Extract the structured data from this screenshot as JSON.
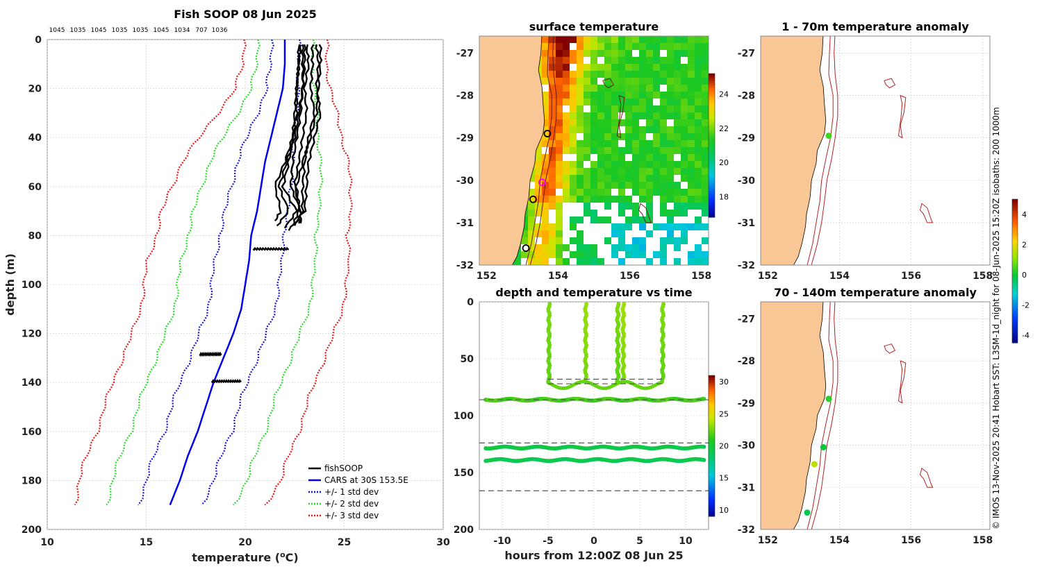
{
  "chart_data": [
    {
      "id": "profile",
      "type": "line",
      "title": "Fish SOOP 08 Jun 2025",
      "top_labels": [
        "1045",
        "1035",
        "1045",
        "1035",
        "1035",
        "1045",
        "1034",
        "707",
        "1036"
      ],
      "xlabel": "temperature (°C)",
      "ylabel": "depth (m)",
      "xlim": [
        10,
        30
      ],
      "ylim": [
        200,
        0
      ],
      "xticks": [
        10,
        15,
        20,
        25,
        30
      ],
      "yticks": [
        0,
        20,
        40,
        60,
        80,
        100,
        120,
        140,
        160,
        180,
        200
      ],
      "depths": [
        0,
        10,
        20,
        30,
        40,
        50,
        60,
        70,
        80,
        90,
        100,
        110,
        120,
        130,
        140,
        150,
        160,
        170,
        180,
        190
      ],
      "cars_mean": [
        22.0,
        22.0,
        21.9,
        21.6,
        21.3,
        21.0,
        20.8,
        20.6,
        20.3,
        20.2,
        20.0,
        19.8,
        19.4,
        18.9,
        18.4,
        18.0,
        17.6,
        17.1,
        16.7,
        16.2
      ],
      "std_dev": [
        0.7,
        0.7,
        0.8,
        1.0,
        1.2,
        1.4,
        1.5,
        1.6,
        1.6,
        1.7,
        1.7,
        1.7,
        1.7,
        1.7,
        1.7,
        1.7,
        1.7,
        1.7,
        1.7,
        1.6
      ],
      "fish_casts": [
        {
          "depth": [
            2,
            10,
            20,
            30,
            40,
            50,
            60,
            70,
            75
          ],
          "temp": [
            22.9,
            22.9,
            22.9,
            22.8,
            22.6,
            22.4,
            22.3,
            22.8,
            22.7
          ]
        },
        {
          "depth": [
            2,
            10,
            20,
            30,
            40,
            50,
            60,
            70,
            75
          ],
          "temp": [
            23.1,
            23.2,
            23.0,
            23.1,
            22.9,
            22.7,
            22.5,
            22.8,
            22.8
          ]
        },
        {
          "depth": [
            2,
            10,
            20,
            30,
            40,
            50,
            60,
            70,
            76
          ],
          "temp": [
            23.4,
            23.4,
            23.3,
            23.5,
            23.2,
            23.0,
            22.9,
            22.9,
            22.5
          ]
        },
        {
          "depth": [
            2,
            10,
            20,
            30,
            40,
            50,
            60,
            70,
            78
          ],
          "temp": [
            23.6,
            23.7,
            23.6,
            23.8,
            23.5,
            23.2,
            23.1,
            23.0,
            22.2
          ]
        },
        {
          "depth": [
            2,
            10,
            20,
            30,
            40,
            50,
            60,
            70,
            77
          ],
          "temp": [
            22.8,
            22.7,
            22.6,
            22.6,
            22.4,
            22.2,
            21.9,
            22.6,
            22.0
          ]
        },
        {
          "depth": [
            2,
            10,
            20,
            30,
            40,
            50,
            60,
            70,
            76
          ],
          "temp": [
            23.8,
            23.8,
            23.7,
            23.6,
            23.3,
            22.9,
            22.6,
            22.7,
            22.4
          ]
        },
        {
          "depth": [
            2,
            10,
            20,
            30,
            40,
            50,
            60,
            70,
            76
          ],
          "temp": [
            23.0,
            23.0,
            22.9,
            22.7,
            22.5,
            22.1,
            21.7,
            22.2,
            21.6
          ]
        },
        {
          "depth": [
            2,
            10,
            20,
            30,
            40,
            50,
            60,
            70,
            74
          ],
          "temp": [
            22.7,
            22.7,
            22.6,
            22.5,
            22.4,
            22.0,
            21.5,
            21.8,
            21.5
          ]
        }
      ],
      "fish_tows": [
        {
          "depth": 85.5,
          "t_min": 20.4,
          "t_max": 22.2
        },
        {
          "depth": 128.5,
          "t_min": 17.7,
          "t_max": 18.8
        },
        {
          "depth": 139.5,
          "t_min": 18.3,
          "t_max": 19.8
        }
      ],
      "legend": [
        "fishSOOP",
        "CARS at 30S 153.5E",
        "+/- 1 std dev",
        "+/- 2 std dev",
        "+/- 3 std dev"
      ],
      "colors": {
        "fish": "#000000",
        "cars": "#0000ee",
        "sd1": "#1111dd",
        "sd2": "#22dd22",
        "sd3": "#ee1111"
      }
    },
    {
      "id": "sst_map",
      "type": "heatmap",
      "title": "surface temperature",
      "xlim": [
        151.8,
        158.2
      ],
      "ylim": [
        -32,
        -26.6
      ],
      "xticks": [
        152,
        154,
        156,
        158
      ],
      "yticks": [
        -27,
        -28,
        -29,
        -30,
        -31,
        -32
      ],
      "colorbar_ticks": [
        18,
        20,
        22,
        24
      ],
      "colorbar_range": [
        16.8,
        25.2
      ],
      "markers": [
        {
          "lon": 153.7,
          "lat": -28.9,
          "color": "#000000"
        },
        {
          "lon": 153.55,
          "lat": -30.05,
          "color": "#ff00ff"
        },
        {
          "lon": 153.3,
          "lat": -30.45,
          "color": "#000000"
        },
        {
          "lon": 153.1,
          "lat": -31.6,
          "color": "#000000"
        }
      ]
    },
    {
      "id": "depth_time",
      "type": "scatter",
      "title": "depth and temperature vs time",
      "xlabel": "hours from 12:00Z 08 Jun 25",
      "xlim": [
        -12.5,
        12.5
      ],
      "ylim": [
        200,
        0
      ],
      "xticks": [
        -10,
        -5,
        0,
        5,
        10
      ],
      "yticks": [
        0,
        50,
        100,
        150,
        200
      ],
      "colorbar_ticks": [
        10,
        15,
        20,
        25,
        30
      ],
      "colorbar_range": [
        9,
        31
      ],
      "dashed_depths": [
        68,
        72,
        86,
        124,
        166
      ],
      "casts": [
        {
          "t": -4.9,
          "temp": 23.0
        },
        {
          "t": -0.9,
          "temp": 23.5
        },
        {
          "t": 2.6,
          "temp": 23.0
        },
        {
          "t": 3.2,
          "temp": 23.6
        },
        {
          "t": 7.5,
          "temp": 23.0
        }
      ],
      "tows": [
        {
          "depth": 86,
          "t_min": -11.8,
          "t_max": 12.0,
          "temp": 21.8
        },
        {
          "depth": 128,
          "t_min": -11.8,
          "t_max": 12.0,
          "temp": 19.6
        },
        {
          "depth": 139,
          "t_min": -11.8,
          "t_max": 12.0,
          "temp": 19.3
        }
      ]
    },
    {
      "id": "anomaly_1_70",
      "type": "scatter",
      "title": "1 - 70m temperature anomaly",
      "xlim": [
        151.8,
        158.2
      ],
      "ylim": [
        -32,
        -26.6
      ],
      "xticks": [
        152,
        154,
        156,
        158
      ],
      "yticks": [
        -27,
        -28,
        -29,
        -30,
        -31,
        -32
      ],
      "points": [
        {
          "lon": 153.7,
          "lat": -28.95,
          "anomaly": 0.5
        }
      ]
    },
    {
      "id": "anomaly_70_140",
      "type": "scatter",
      "title": "70 - 140m temperature anomaly",
      "xlim": [
        151.8,
        158.2
      ],
      "ylim": [
        -32,
        -26.6
      ],
      "xticks": [
        152,
        154,
        156,
        158
      ],
      "yticks": [
        -27,
        -28,
        -29,
        -30,
        -31,
        -32
      ],
      "points": [
        {
          "lon": 153.7,
          "lat": -28.9,
          "anomaly": 0.3
        },
        {
          "lon": 153.55,
          "lat": -30.05,
          "anomaly": 0.0
        },
        {
          "lon": 153.3,
          "lat": -30.45,
          "anomaly": 1.6
        },
        {
          "lon": 153.1,
          "lat": -31.6,
          "anomaly": -0.2
        }
      ],
      "colorbar_ticks": [
        -4,
        -2,
        0,
        2,
        4
      ],
      "colorbar_range": [
        -4.5,
        5
      ]
    }
  ],
  "credit": "© IMOS 13-Nov-2025 20:41 Hobart SST: L3SM-1d_night for 08-Jun-2025 15:20Z isobaths: 200  1000m",
  "land_color": "#f9c695"
}
